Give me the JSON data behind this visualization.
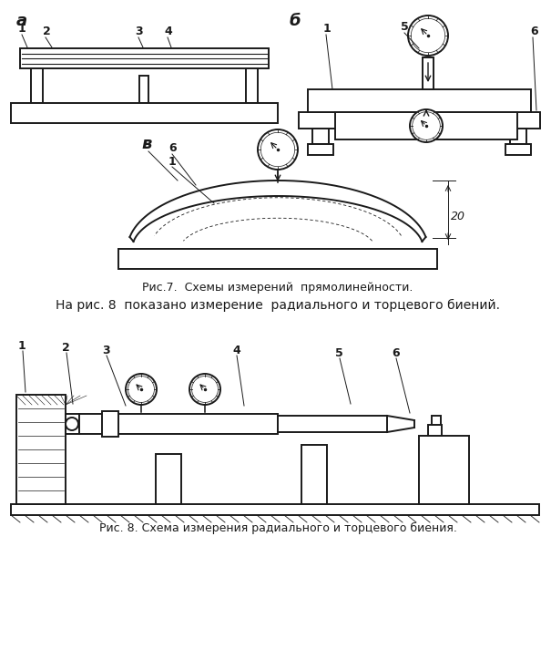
{
  "bg_color": "#ffffff",
  "lc": "#1a1a1a",
  "lw": 1.4,
  "fig_caption7": "Рис.7.  Схемы измерений  прямолинейности.",
  "fig_caption8": "Рис. 8. Схема измерения радиального и торцевого биения.",
  "text_between": "На рис. 8  показано измерение  радиального и торцевого биений.",
  "label_a": "а",
  "label_b": "б",
  "label_v": "в",
  "font_caption": 9,
  "font_between": 10,
  "font_label": 13,
  "font_num": 9
}
